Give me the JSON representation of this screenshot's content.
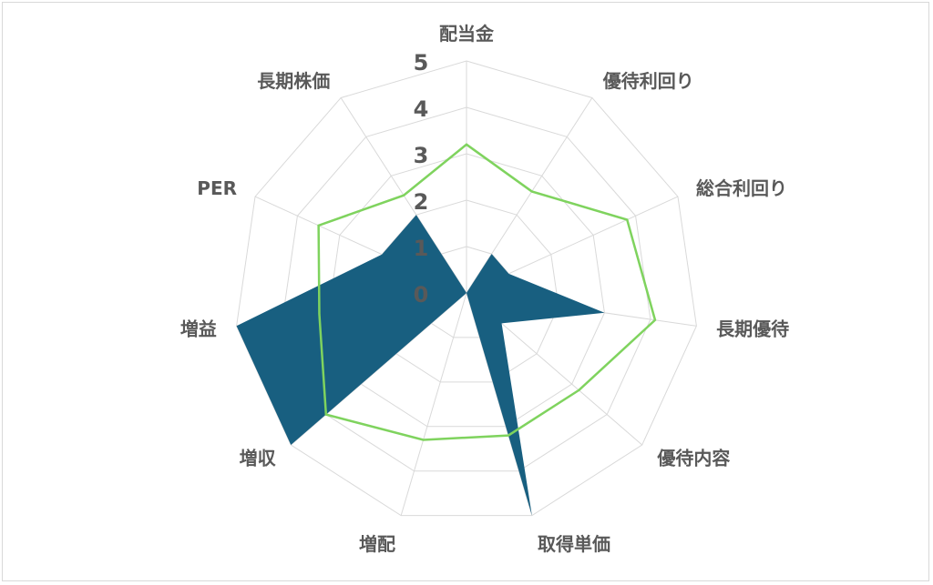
{
  "chart_data": {
    "type": "radar",
    "title": "",
    "categories": [
      "配当金",
      "優待利回り",
      "総合利回り",
      "長期優待",
      "優待内容",
      "取得単価",
      "増配",
      "増収",
      "増益",
      "PER",
      "長期株価"
    ],
    "rlim": [
      0,
      5
    ],
    "ticks": [
      "0",
      "1",
      "2",
      "3",
      "4",
      "5"
    ],
    "grid": true,
    "legend": "none",
    "series": [
      {
        "style": "filled",
        "color": "#185f80",
        "values": [
          0,
          1,
          1,
          3,
          1,
          5,
          0,
          5,
          5,
          2,
          2
        ]
      },
      {
        "style": "line",
        "color": "#7fd35e",
        "values": [
          3.2,
          2.6,
          3.8,
          4.1,
          3.2,
          3.2,
          3.3,
          4.0,
          3.2,
          3.5,
          2.5
        ]
      }
    ],
    "grid_color": "#d9d9d9"
  }
}
